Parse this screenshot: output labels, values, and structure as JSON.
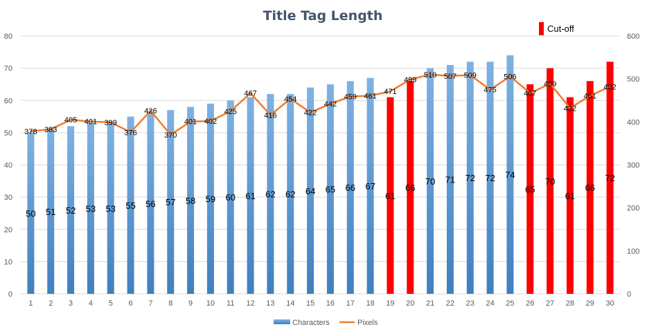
{
  "chart_data": {
    "type": "bar",
    "title": "Title Tag Length",
    "categories": [
      "1",
      "2",
      "3",
      "4",
      "5",
      "6",
      "7",
      "8",
      "9",
      "10",
      "11",
      "12",
      "13",
      "14",
      "15",
      "16",
      "17",
      "18",
      "19",
      "20",
      "21",
      "22",
      "23",
      "24",
      "25",
      "26",
      "27",
      "28",
      "29",
      "30"
    ],
    "series": [
      {
        "name": "Characters",
        "type": "bar",
        "axis": "left",
        "values": [
          50,
          51,
          52,
          53,
          53,
          55,
          56,
          57,
          58,
          59,
          60,
          61,
          62,
          62,
          64,
          65,
          66,
          67,
          61,
          66,
          70,
          71,
          72,
          72,
          74,
          65,
          70,
          61,
          66,
          72
        ],
        "highlighted": [
          19,
          20,
          26,
          27,
          28,
          29,
          30
        ]
      },
      {
        "name": "Pixels",
        "type": "line",
        "axis": "right",
        "values": [
          378,
          383,
          405,
          401,
          399,
          376,
          426,
          370,
          401,
          402,
          425,
          467,
          416,
          454,
          422,
          442,
          459,
          461,
          471,
          499,
          510,
          507,
          509,
          475,
          506,
          467,
          489,
          432,
          461,
          482
        ]
      }
    ],
    "ylim": [
      0,
      80
    ],
    "yticks": [
      "0",
      "10",
      "20",
      "30",
      "40",
      "50",
      "60",
      "70",
      "80"
    ],
    "y2lim": [
      0,
      600
    ],
    "y2ticks": [
      "0",
      "100",
      "200",
      "300",
      "400",
      "500",
      "600"
    ],
    "grid": true,
    "legend": "bottom",
    "annotation": "Cut-off",
    "colors": {
      "bar": "#5b9bd5",
      "bar_light": "#7fb2e3",
      "bar_dark": "#3f7fc0",
      "highlight": "#ff0000",
      "line": "#ed7d31",
      "grid": "#d9d9d9",
      "axis_text": "#595959",
      "title": "#44546a"
    }
  }
}
